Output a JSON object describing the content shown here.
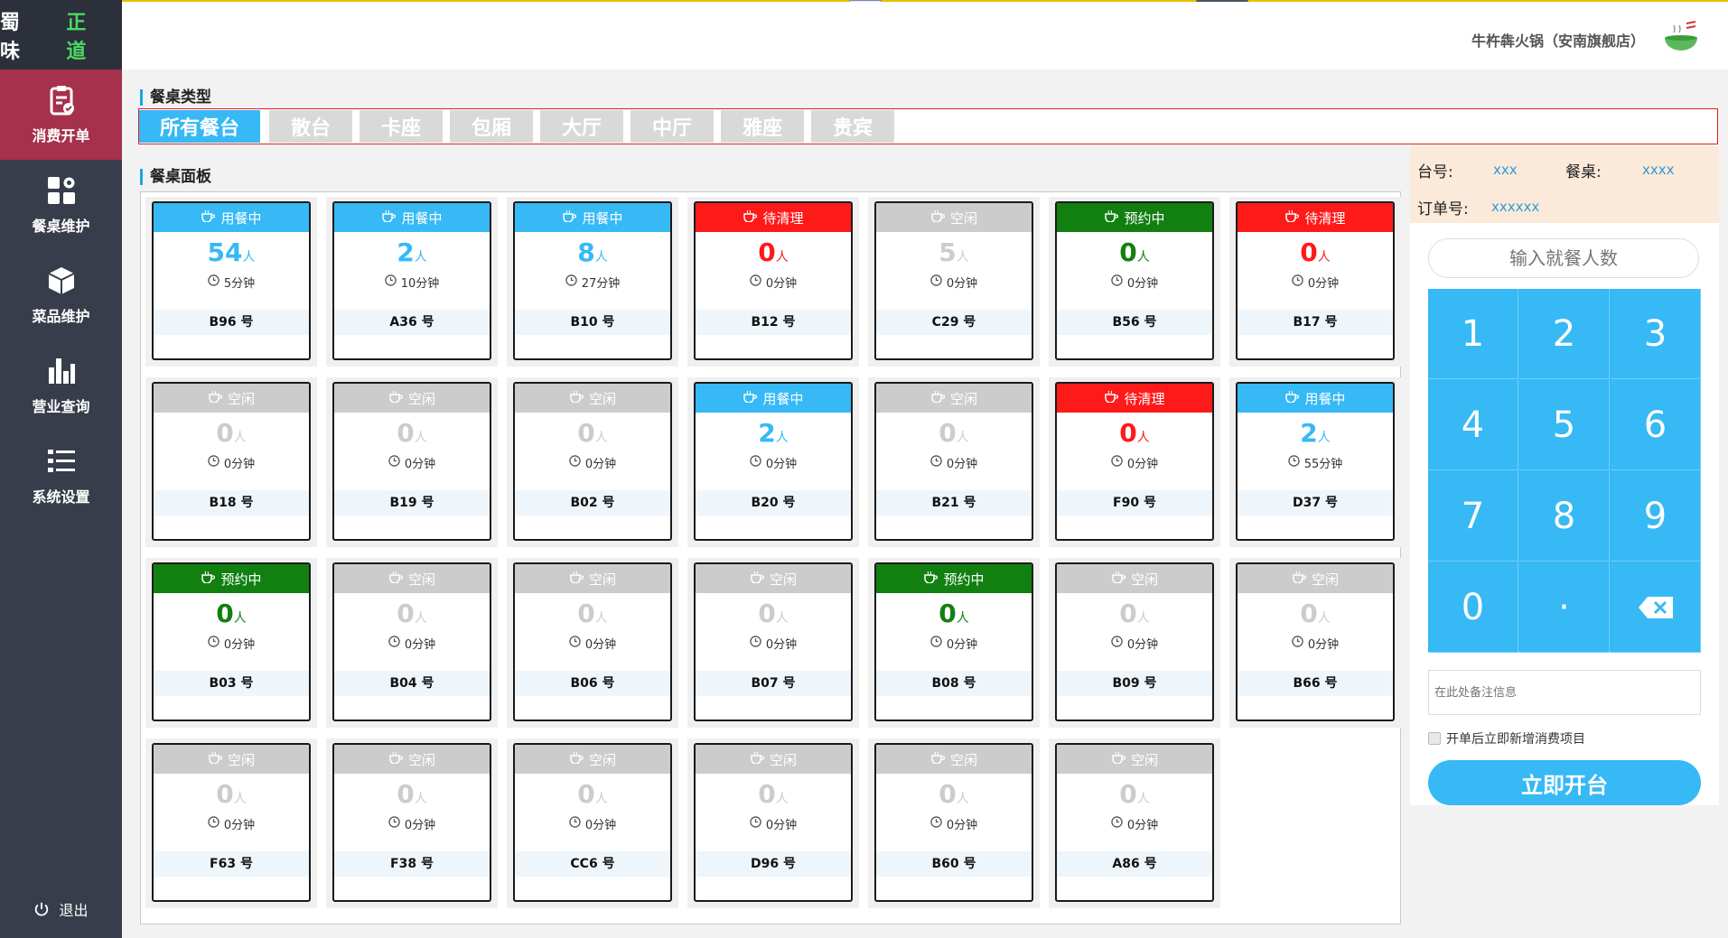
{
  "app": {
    "logo_part1": "蜀 味",
    "logo_part2": "正 道",
    "store_name": "牛杵犇火锅（安南旗舰店）"
  },
  "sidebar": {
    "items": [
      {
        "label": "消费开单",
        "icon": "clipboard-check-icon",
        "active": true
      },
      {
        "label": "餐桌维护",
        "icon": "grid-gear-icon",
        "active": false
      },
      {
        "label": "菜品维护",
        "icon": "cube-icon",
        "active": false
      },
      {
        "label": "营业查询",
        "icon": "bar-chart-icon",
        "active": false
      },
      {
        "label": "系统设置",
        "icon": "list-settings-icon",
        "active": false
      }
    ],
    "logout_label": "退出"
  },
  "table_types": {
    "title": "餐桌类型",
    "tabs": [
      "所有餐台",
      "散台",
      "卡座",
      "包厢",
      "大厅",
      "中厅",
      "雅座",
      "贵宾"
    ],
    "active_index": 0
  },
  "panel": {
    "title": "餐桌面板"
  },
  "status_colors": {
    "用餐中": "#36b9f5",
    "待清理": "#ff1a1a",
    "空闲": "#cccccc",
    "预约中": "#118011"
  },
  "count_colors": {
    "用餐中": "#36b9f5",
    "待清理": "#ff1a1a",
    "空闲": "#cccccc",
    "预约中": "#118011"
  },
  "unit_label": "人",
  "tables": [
    {
      "status": "用餐中",
      "count": "54",
      "time": "5分钟",
      "name": "B96 号"
    },
    {
      "status": "用餐中",
      "count": "2",
      "time": "10分钟",
      "name": "A36 号"
    },
    {
      "status": "用餐中",
      "count": "8",
      "time": "27分钟",
      "name": "B10 号"
    },
    {
      "status": "待清理",
      "count": "0",
      "time": "0分钟",
      "name": "B12 号"
    },
    {
      "status": "空闲",
      "count": "5",
      "time": "0分钟",
      "name": "C29 号"
    },
    {
      "status": "预约中",
      "count": "0",
      "time": "0分钟",
      "name": "B56 号"
    },
    {
      "status": "待清理",
      "count": "0",
      "time": "0分钟",
      "name": "B17 号"
    },
    {
      "status": "空闲",
      "count": "0",
      "time": "0分钟",
      "name": "B18 号"
    },
    {
      "status": "空闲",
      "count": "0",
      "time": "0分钟",
      "name": "B19 号"
    },
    {
      "status": "空闲",
      "count": "0",
      "time": "0分钟",
      "name": "B02 号"
    },
    {
      "status": "用餐中",
      "count": "2",
      "time": "0分钟",
      "name": "B20 号"
    },
    {
      "status": "空闲",
      "count": "0",
      "time": "0分钟",
      "name": "B21 号"
    },
    {
      "status": "待清理",
      "count": "0",
      "time": "0分钟",
      "name": "F90 号"
    },
    {
      "status": "用餐中",
      "count": "2",
      "time": "55分钟",
      "name": "D37 号"
    },
    {
      "status": "预约中",
      "count": "0",
      "time": "0分钟",
      "name": "B03 号"
    },
    {
      "status": "空闲",
      "count": "0",
      "time": "0分钟",
      "name": "B04 号"
    },
    {
      "status": "空闲",
      "count": "0",
      "time": "0分钟",
      "name": "B06 号"
    },
    {
      "status": "空闲",
      "count": "0",
      "time": "0分钟",
      "name": "B07 号"
    },
    {
      "status": "预约中",
      "count": "0",
      "time": "0分钟",
      "name": "B08 号"
    },
    {
      "status": "空闲",
      "count": "0",
      "time": "0分钟",
      "name": "B09 号"
    },
    {
      "status": "空闲",
      "count": "0",
      "time": "0分钟",
      "name": "B66 号"
    },
    {
      "status": "空闲",
      "count": "0",
      "time": "0分钟",
      "name": "F63 号"
    },
    {
      "status": "空闲",
      "count": "0",
      "time": "0分钟",
      "name": "F38 号"
    },
    {
      "status": "空闲",
      "count": "0",
      "time": "0分钟",
      "name": "CC6 号"
    },
    {
      "status": "空闲",
      "count": "0",
      "time": "0分钟",
      "name": "D96 号"
    },
    {
      "status": "空闲",
      "count": "0",
      "time": "0分钟",
      "name": "B60 号"
    },
    {
      "status": "空闲",
      "count": "0",
      "time": "0分钟",
      "name": "A86 号"
    }
  ],
  "order_info": {
    "table_label": "台号:",
    "table_value": "xxx",
    "desk_label": "餐桌:",
    "desk_value": "xxxx",
    "order_label": "订单号:",
    "order_value": "xxxxxx"
  },
  "guest_input": {
    "placeholder": "输入就餐人数"
  },
  "keypad": {
    "keys": [
      "1",
      "2",
      "3",
      "4",
      "5",
      "6",
      "7",
      "8",
      "9",
      "0",
      "·",
      "backspace-icon"
    ]
  },
  "note_input": {
    "placeholder": "在此处备注信息"
  },
  "add_items_checkbox_label": "开单后立即新增消费项目",
  "open_button_label": "立即开台"
}
